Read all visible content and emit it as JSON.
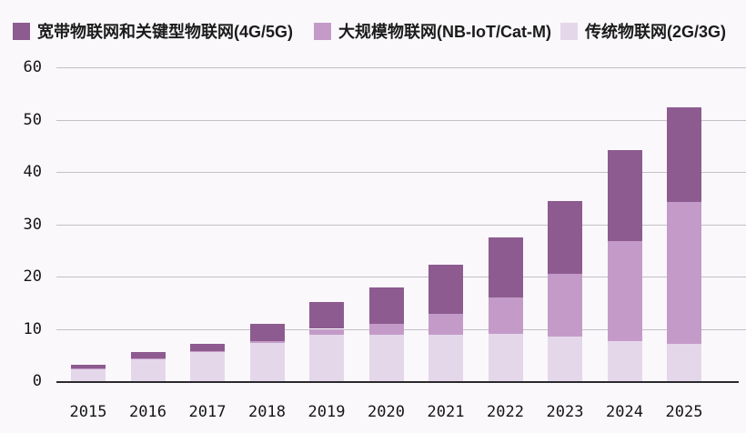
{
  "chart_data": {
    "type": "bar",
    "stacked": true,
    "title": "",
    "xlabel": "",
    "ylabel": "",
    "categories": [
      "2015",
      "2016",
      "2017",
      "2018",
      "2019",
      "2020",
      "2021",
      "2022",
      "2023",
      "2024",
      "2025"
    ],
    "series": [
      {
        "name": "宽带物联网和关键型物联网(4G/5G)",
        "color": "#8d5b90",
        "values": [
          0.6,
          1.2,
          1.5,
          3.3,
          5.2,
          7.1,
          9.4,
          11.5,
          13.8,
          17.3,
          18.0
        ]
      },
      {
        "name": "大规模物联网(NB-IoT/Cat-M)",
        "color": "#c49bc8",
        "values": [
          0.1,
          0.1,
          0.2,
          0.3,
          1.2,
          2.1,
          4.0,
          7.0,
          12.1,
          19.2,
          27.1
        ]
      },
      {
        "name": "传统物联网(2G/3G)",
        "color": "#e5d7ea",
        "values": [
          2.4,
          4.3,
          5.5,
          7.3,
          8.8,
          8.8,
          8.9,
          9.0,
          8.5,
          7.6,
          7.2
        ]
      }
    ],
    "stack_order_bottom_to_top": [
      "传统物联网(2G/3G)",
      "大规模物联网(NB-IoT/Cat-M)",
      "宽带物联网和关键型物联网(4G/5G)"
    ],
    "totals": [
      3.1,
      5.6,
      7.2,
      10.9,
      15.2,
      18.0,
      22.3,
      27.5,
      34.4,
      44.1,
      52.3
    ],
    "yticks": [
      0,
      10,
      20,
      30,
      40,
      50,
      60
    ],
    "ylim": [
      0,
      60
    ],
    "grid": true,
    "legend_position": "top-left"
  },
  "legend": {
    "items": [
      {
        "label": "宽带物联网和关键型物联网(4G/5G)",
        "color": "#8d5b90"
      },
      {
        "label": "大规模物联网(NB-IoT/Cat-M)",
        "color": "#c49bc8"
      },
      {
        "label": "传统物联网(2G/3G)",
        "color": "#e5d7ea"
      }
    ]
  },
  "colors": {
    "background": "#faf8fb",
    "gridline": "#c3c1c5",
    "axis_line": "#2b2a2d",
    "text": "#161616"
  }
}
